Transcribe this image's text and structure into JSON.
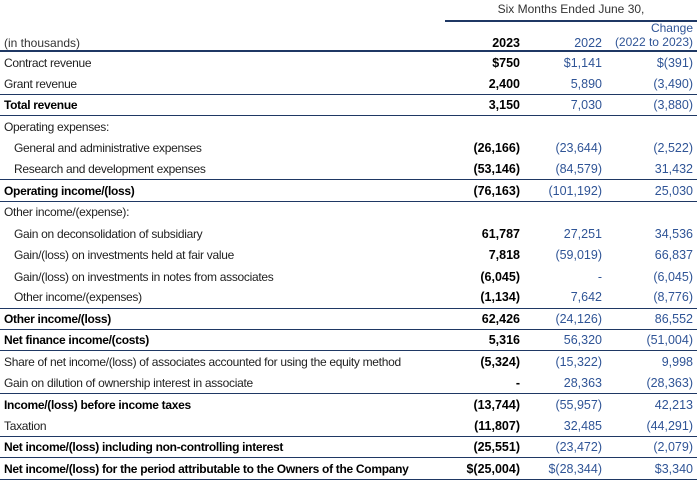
{
  "colors": {
    "rule": "#1F3864",
    "blue_values": "#2F5496",
    "text": "#1F1F1F"
  },
  "header": {
    "period_label": "Six Months Ended June 30,",
    "units_label": "(in thousands)",
    "col_2023": "2023",
    "col_2022": "2022",
    "col_change_line1": "Change",
    "col_change_line2": "(2022 to 2023)"
  },
  "rows": [
    {
      "label": "Contract revenue",
      "y2023": "$750",
      "y2022": "$1,141",
      "change": "$(391)"
    },
    {
      "label": "Grant revenue",
      "y2023": "2,400",
      "y2022": "5,890",
      "change": "(3,490)",
      "rule_below": true
    },
    {
      "label": "Total revenue",
      "y2023": "3,150",
      "y2022": "7,030",
      "change": "(3,880)",
      "bold": true,
      "rule_below": true
    },
    {
      "label": "Operating expenses:",
      "y2023": "",
      "y2022": "",
      "change": "",
      "section": true
    },
    {
      "label": "General and administrative expenses",
      "y2023": "(26,166)",
      "y2022": "(23,644)",
      "change": "(2,522)",
      "indent": true
    },
    {
      "label": "Research and development expenses",
      "y2023": "(53,146)",
      "y2022": "(84,579)",
      "change": "31,432",
      "indent": true,
      "rule_below": true
    },
    {
      "label": "Operating income/(loss)",
      "y2023": "(76,163)",
      "y2022": "(101,192)",
      "change": "25,030",
      "bold": true,
      "rule_below": true
    },
    {
      "label": "Other income/(expense):",
      "y2023": "",
      "y2022": "",
      "change": "",
      "section": true
    },
    {
      "label": "Gain on deconsolidation of subsidiary",
      "y2023": "61,787",
      "y2022": "27,251",
      "change": "34,536",
      "indent": true
    },
    {
      "label": "Gain/(loss) on investments held at fair value",
      "y2023": "7,818",
      "y2022": "(59,019)",
      "change": "66,837",
      "indent": true
    },
    {
      "label": "Gain/(loss) on investments in notes from associates",
      "y2023": "(6,045)",
      "y2022": "-",
      "change": "(6,045)",
      "indent": true
    },
    {
      "label": "Other income/(expenses)",
      "y2023": "(1,134)",
      "y2022": "7,642",
      "change": "(8,776)",
      "indent": true,
      "rule_below": true
    },
    {
      "label": "Other income/(loss)",
      "y2023": "62,426",
      "y2022": "(24,126)",
      "change": "86,552",
      "bold": true,
      "rule_below": true
    },
    {
      "label": "Net finance income/(costs)",
      "y2023": "5,316",
      "y2022": "56,320",
      "change": "(51,004)",
      "bold": true,
      "rule_below": true
    },
    {
      "label": "Share of net income/(loss) of associates accounted for using the equity method",
      "y2023": "(5,324)",
      "y2022": "(15,322)",
      "change": "9,998"
    },
    {
      "label": "Gain on dilution of ownership interest in associate",
      "y2023": "-",
      "y2022": "28,363",
      "change": "(28,363)",
      "rule_below": true
    },
    {
      "label": "Income/(loss) before income taxes",
      "y2023": "(13,744)",
      "y2022": "(55,957)",
      "change": "42,213",
      "bold": true
    },
    {
      "label": "Taxation",
      "y2023": "(11,807)",
      "y2022": "32,485",
      "change": "(44,291)",
      "rule_below": true
    },
    {
      "label": "Net income/(loss) including non-controlling interest",
      "y2023": "(25,551)",
      "y2022": "(23,472)",
      "change": "(2,079)",
      "bold": true,
      "rule_below": true
    },
    {
      "label": "Net income/(loss) for the period attributable to the Owners of the Company",
      "y2023": "$(25,004)",
      "y2022": "$(28,344)",
      "change": "$3,340",
      "bold": true,
      "rule_below": true
    }
  ]
}
